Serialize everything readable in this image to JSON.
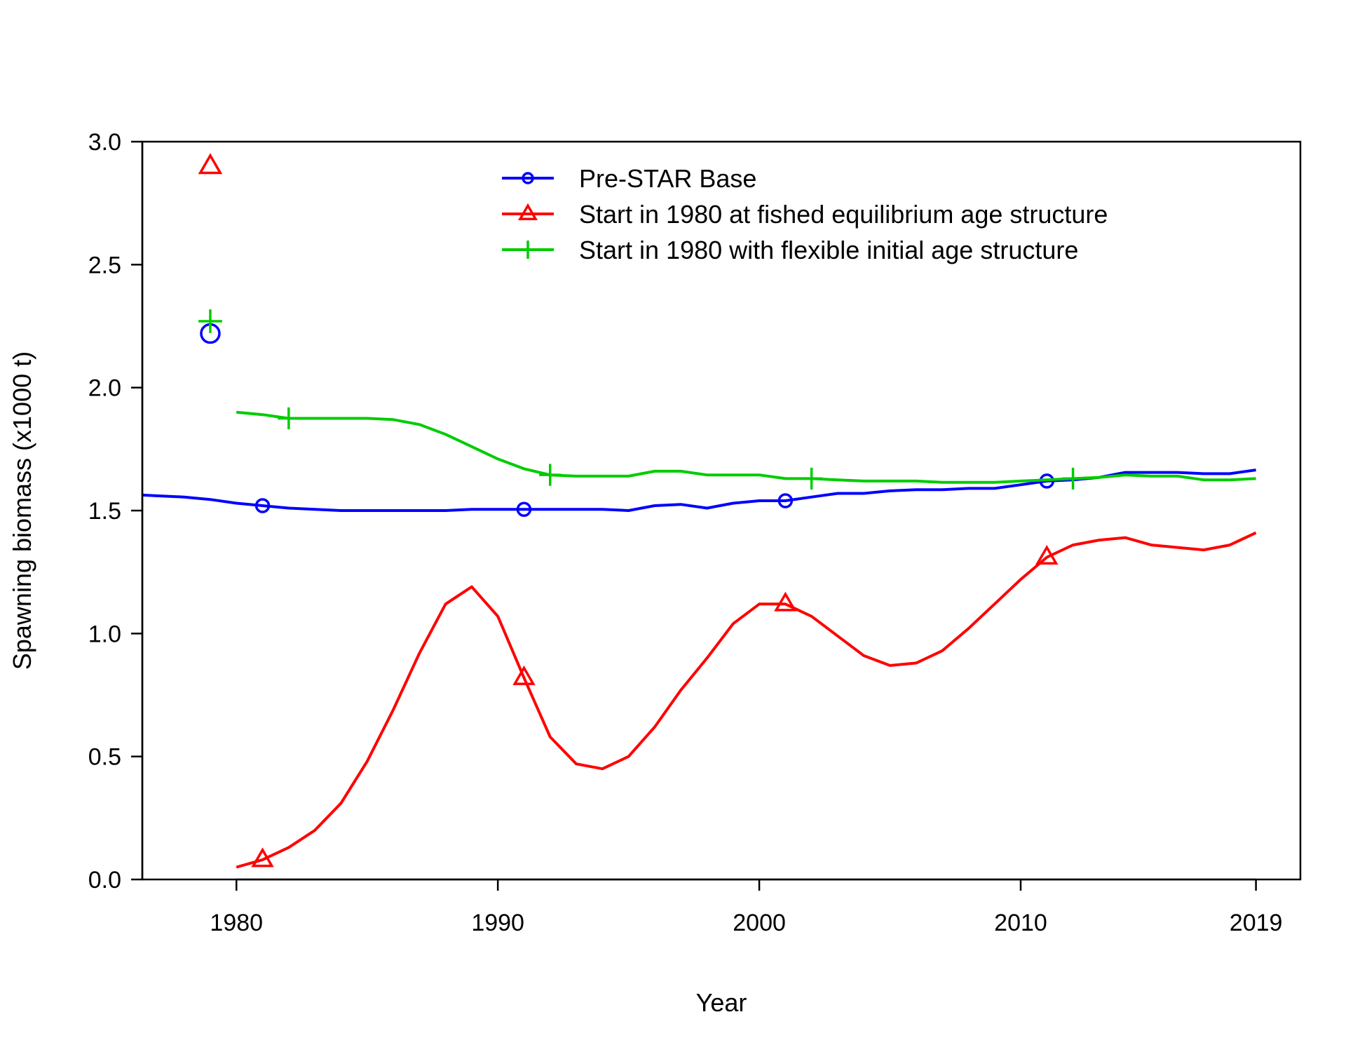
{
  "chart_data": {
    "type": "line",
    "xlabel": "Year",
    "ylabel": "Spawning biomass (x1000 t)",
    "xlim": [
      1976.4,
      2020.7
    ],
    "ylim": [
      0,
      3.0
    ],
    "x_ticks": [
      {
        "value": 1980,
        "label": "1980"
      },
      {
        "value": 1990,
        "label": "1990"
      },
      {
        "value": 2000,
        "label": "2000"
      },
      {
        "value": 2010,
        "label": "2010"
      },
      {
        "value": 2019,
        "label": "2019"
      }
    ],
    "y_ticks": [
      {
        "value": 0.0,
        "label": "0.0"
      },
      {
        "value": 0.5,
        "label": "0.5"
      },
      {
        "value": 1.0,
        "label": "1.0"
      },
      {
        "value": 1.5,
        "label": "1.5"
      },
      {
        "value": 2.0,
        "label": "2.0"
      },
      {
        "value": 2.5,
        "label": "2.5"
      },
      {
        "value": 3.0,
        "label": "3.0"
      }
    ],
    "legend_position": "top-center",
    "series": [
      {
        "name": "Pre-STAR Base",
        "color": "#0000ff",
        "marker": "circle",
        "x": [
          1976,
          1977,
          1978,
          1979,
          1980,
          1981,
          1982,
          1983,
          1984,
          1985,
          1986,
          1987,
          1988,
          1989,
          1990,
          1991,
          1992,
          1993,
          1994,
          1995,
          1996,
          1997,
          1998,
          1999,
          2000,
          2001,
          2002,
          2003,
          2004,
          2005,
          2006,
          2007,
          2008,
          2009,
          2010,
          2011,
          2012,
          2013,
          2014,
          2015,
          2016,
          2017,
          2018,
          2019
        ],
        "y": [
          1.565,
          1.56,
          1.555,
          1.545,
          1.53,
          1.52,
          1.51,
          1.505,
          1.5,
          1.5,
          1.5,
          1.5,
          1.5,
          1.505,
          1.505,
          1.505,
          1.505,
          1.505,
          1.505,
          1.5,
          1.52,
          1.525,
          1.51,
          1.53,
          1.54,
          1.54,
          1.555,
          1.57,
          1.57,
          1.58,
          1.585,
          1.585,
          1.59,
          1.59,
          1.605,
          1.62,
          1.625,
          1.635,
          1.655,
          1.655,
          1.655,
          1.65,
          1.65,
          1.665
        ],
        "marker_x": [
          1981,
          1991,
          2001,
          2011
        ],
        "virgin": 2.22
      },
      {
        "name": "Start in 1980 at fished equilibrium age structure",
        "color": "#ff0000",
        "marker": "triangle",
        "x": [
          1980,
          1981,
          1982,
          1983,
          1984,
          1985,
          1986,
          1987,
          1988,
          1989,
          1990,
          1991,
          1992,
          1993,
          1994,
          1995,
          1996,
          1997,
          1998,
          1999,
          2000,
          2001,
          2002,
          2003,
          2004,
          2005,
          2006,
          2007,
          2008,
          2009,
          2010,
          2011,
          2012,
          2013,
          2014,
          2015,
          2016,
          2017,
          2018,
          2019
        ],
        "y": [
          0.05,
          0.08,
          0.13,
          0.2,
          0.31,
          0.48,
          0.69,
          0.92,
          1.12,
          1.19,
          1.07,
          0.82,
          0.58,
          0.47,
          0.45,
          0.5,
          0.62,
          0.77,
          0.9,
          1.04,
          1.12,
          1.12,
          1.07,
          0.99,
          0.91,
          0.87,
          0.88,
          0.93,
          1.02,
          1.12,
          1.22,
          1.31,
          1.36,
          1.38,
          1.39,
          1.36,
          1.35,
          1.34,
          1.36,
          1.41
        ],
        "marker_x": [
          1981,
          1991,
          2001,
          2011
        ],
        "virgin": 2.9
      },
      {
        "name": "Start in 1980 with flexible initial age structure",
        "color": "#00cc00",
        "marker": "plus",
        "x": [
          1980,
          1981,
          1982,
          1983,
          1984,
          1985,
          1986,
          1987,
          1988,
          1989,
          1990,
          1991,
          1992,
          1993,
          1994,
          1995,
          1996,
          1997,
          1998,
          1999,
          2000,
          2001,
          2002,
          2003,
          2004,
          2005,
          2006,
          2007,
          2008,
          2009,
          2010,
          2011,
          2012,
          2013,
          2014,
          2015,
          2016,
          2017,
          2018,
          2019
        ],
        "y": [
          1.9,
          1.89,
          1.875,
          1.875,
          1.875,
          1.875,
          1.87,
          1.85,
          1.81,
          1.76,
          1.71,
          1.67,
          1.645,
          1.64,
          1.64,
          1.64,
          1.66,
          1.66,
          1.645,
          1.645,
          1.645,
          1.63,
          1.63,
          1.625,
          1.62,
          1.62,
          1.62,
          1.615,
          1.615,
          1.615,
          1.62,
          1.625,
          1.63,
          1.635,
          1.645,
          1.64,
          1.64,
          1.625,
          1.625,
          1.63
        ],
        "marker_x": [
          1982,
          1992,
          2002,
          2012
        ],
        "virgin": 2.27
      }
    ],
    "virgin_x": 1979
  }
}
